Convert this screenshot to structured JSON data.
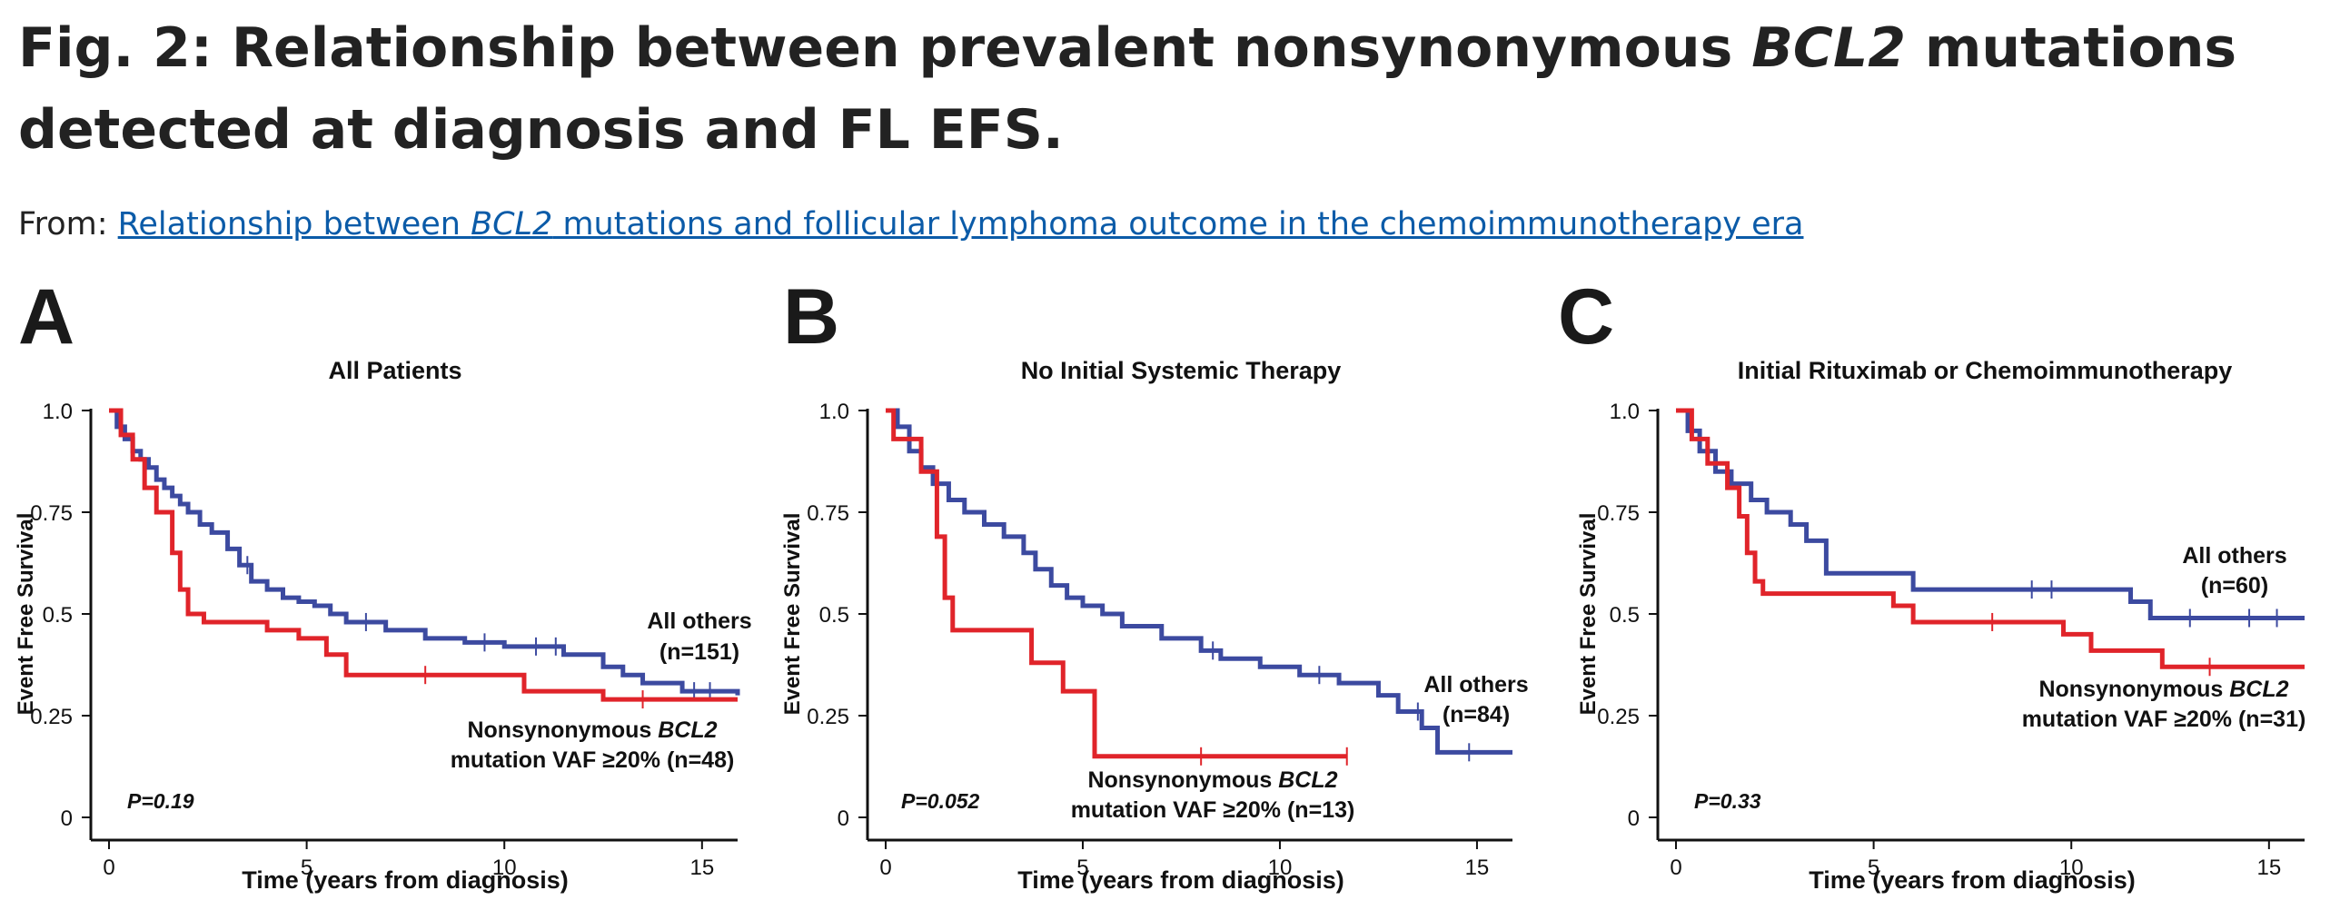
{
  "header": {
    "title_part1": "Fig. 2: Relationship between prevalent nonsynonymous ",
    "title_gene": "BCL2",
    "title_part2": " mutations detected at diagnosis and FL EFS.",
    "from_label": "From:",
    "link_part1": "Relationship between ",
    "link_gene": "BCL2",
    "link_part2": " mutations and follicular lymphoma outcome in the chemoimmunotherapy era"
  },
  "colors": {
    "blue": "#3c4aa0",
    "red": "#e0242a",
    "axis": "#111111"
  },
  "chart_data": [
    {
      "type": "line",
      "panel_letter": "A",
      "title": "All Patients",
      "xlabel": "Time (years from diagnosis)",
      "ylabel": "Event Free Survival",
      "xlim": [
        0,
        15.9
      ],
      "ylim": [
        0,
        1.0
      ],
      "xticks": [
        0,
        5,
        10,
        15
      ],
      "yticks": [
        0,
        0.25,
        0.5,
        0.75,
        1.0
      ],
      "ytick_labels": [
        "0",
        "0.25",
        "0.5",
        "0.75",
        "1.0"
      ],
      "pvalue": "P=0.19",
      "series": [
        {
          "color": "blue",
          "label_lines": [
            "All others",
            "(n=151)"
          ],
          "x": [
            0,
            0.2,
            0.4,
            0.6,
            0.8,
            1.0,
            1.2,
            1.4,
            1.6,
            1.8,
            2.0,
            2.3,
            2.6,
            3.0,
            3.3,
            3.6,
            4.0,
            4.4,
            4.8,
            5.2,
            5.6,
            6.0,
            7.0,
            8.0,
            9.0,
            10.0,
            11.5,
            12.5,
            13.0,
            13.5,
            14.5,
            15.9
          ],
          "y": [
            1.0,
            0.96,
            0.93,
            0.9,
            0.88,
            0.86,
            0.83,
            0.81,
            0.79,
            0.77,
            0.75,
            0.72,
            0.7,
            0.66,
            0.62,
            0.58,
            0.56,
            0.54,
            0.53,
            0.52,
            0.5,
            0.48,
            0.46,
            0.44,
            0.43,
            0.42,
            0.4,
            0.37,
            0.35,
            0.33,
            0.31,
            0.3
          ],
          "censor_x": [
            3.5,
            6.5,
            9.5,
            10.8,
            11.3,
            14.8,
            15.2
          ]
        },
        {
          "color": "red",
          "label_lines": [
            "Nonsynonymous ",
            "BCL2",
            "mutation VAF ≥20% (n=48)"
          ],
          "x": [
            0,
            0.3,
            0.6,
            0.9,
            1.2,
            1.6,
            1.8,
            2.0,
            2.4,
            4.0,
            4.8,
            5.5,
            6.0,
            9.5,
            10.5,
            12.5,
            15.9
          ],
          "y": [
            1.0,
            0.94,
            0.88,
            0.81,
            0.75,
            0.65,
            0.56,
            0.5,
            0.48,
            0.46,
            0.44,
            0.4,
            0.35,
            0.35,
            0.31,
            0.29,
            0.29
          ],
          "censor_x": [
            8.0,
            13.5
          ]
        }
      ]
    },
    {
      "type": "line",
      "panel_letter": "B",
      "title": "No Initial Systemic Therapy",
      "xlabel": "Time (years from diagnosis)",
      "ylabel": "Event Free Survival",
      "xlim": [
        0,
        15.9
      ],
      "ylim": [
        0,
        1.0
      ],
      "xticks": [
        0,
        5,
        10,
        15
      ],
      "yticks": [
        0,
        0.25,
        0.5,
        0.75,
        1.0
      ],
      "ytick_labels": [
        "0",
        "0.25",
        "0.5",
        "0.75",
        "1.0"
      ],
      "pvalue": "P=0.052",
      "series": [
        {
          "color": "blue",
          "label_lines": [
            "All others",
            "(n=84)"
          ],
          "x": [
            0,
            0.3,
            0.6,
            0.9,
            1.2,
            1.6,
            2.0,
            2.5,
            3.0,
            3.5,
            3.8,
            4.2,
            4.6,
            5.0,
            5.5,
            6.0,
            7.0,
            8.0,
            8.5,
            9.5,
            10.5,
            11.5,
            12.5,
            13.0,
            13.6,
            14.0,
            15.9
          ],
          "y": [
            1.0,
            0.96,
            0.9,
            0.86,
            0.82,
            0.78,
            0.75,
            0.72,
            0.69,
            0.65,
            0.61,
            0.57,
            0.54,
            0.52,
            0.5,
            0.47,
            0.44,
            0.41,
            0.39,
            0.37,
            0.35,
            0.33,
            0.3,
            0.26,
            0.22,
            0.16,
            0.16
          ],
          "censor_x": [
            8.3,
            11.0,
            13.5,
            14.8
          ]
        },
        {
          "color": "red",
          "label_lines": [
            "Nonsynonymous ",
            "BCL2",
            "mutation VAF ≥20% (n=13)"
          ],
          "x": [
            0,
            0.2,
            0.9,
            1.3,
            1.5,
            1.7,
            3.7,
            4.5,
            5.3,
            11.7
          ],
          "y": [
            1.0,
            0.93,
            0.85,
            0.69,
            0.54,
            0.46,
            0.38,
            0.31,
            0.15,
            0.15
          ],
          "censor_x": [
            8.0,
            11.7
          ]
        }
      ]
    },
    {
      "type": "line",
      "panel_letter": "C",
      "title": "Initial Rituximab or Chemoimmunotherapy",
      "xlabel": "Time (years from diagnosis)",
      "ylabel": "Event Free Survival",
      "xlim": [
        0,
        15.9
      ],
      "ylim": [
        0,
        1.0
      ],
      "xticks": [
        0,
        5,
        10,
        15
      ],
      "yticks": [
        0,
        0.25,
        0.5,
        0.75,
        1.0
      ],
      "ytick_labels": [
        "0",
        "0.25",
        "0.5",
        "0.75",
        "1.0"
      ],
      "pvalue": "P=0.33",
      "series": [
        {
          "color": "blue",
          "label_lines": [
            "All others",
            "(n=60)"
          ],
          "x": [
            0,
            0.3,
            0.6,
            1.0,
            1.4,
            1.9,
            2.3,
            2.9,
            3.3,
            3.8,
            6.0,
            11.5,
            12.0,
            15.9
          ],
          "y": [
            1.0,
            0.95,
            0.9,
            0.85,
            0.82,
            0.78,
            0.75,
            0.72,
            0.68,
            0.6,
            0.56,
            0.53,
            0.49,
            0.49
          ],
          "censor_x": [
            9.0,
            9.5,
            13.0,
            14.5,
            15.2
          ]
        },
        {
          "color": "red",
          "label_lines": [
            "Nonsynonymous ",
            "BCL2",
            "mutation VAF ≥20% (n=31)"
          ],
          "x": [
            0,
            0.4,
            0.8,
            1.3,
            1.6,
            1.8,
            2.0,
            2.2,
            5.5,
            6.0,
            9.8,
            10.5,
            12.3,
            15.9
          ],
          "y": [
            1.0,
            0.93,
            0.87,
            0.81,
            0.74,
            0.65,
            0.58,
            0.55,
            0.52,
            0.48,
            0.45,
            0.41,
            0.37,
            0.37
          ],
          "censor_x": [
            8.0,
            13.5
          ]
        }
      ]
    }
  ]
}
